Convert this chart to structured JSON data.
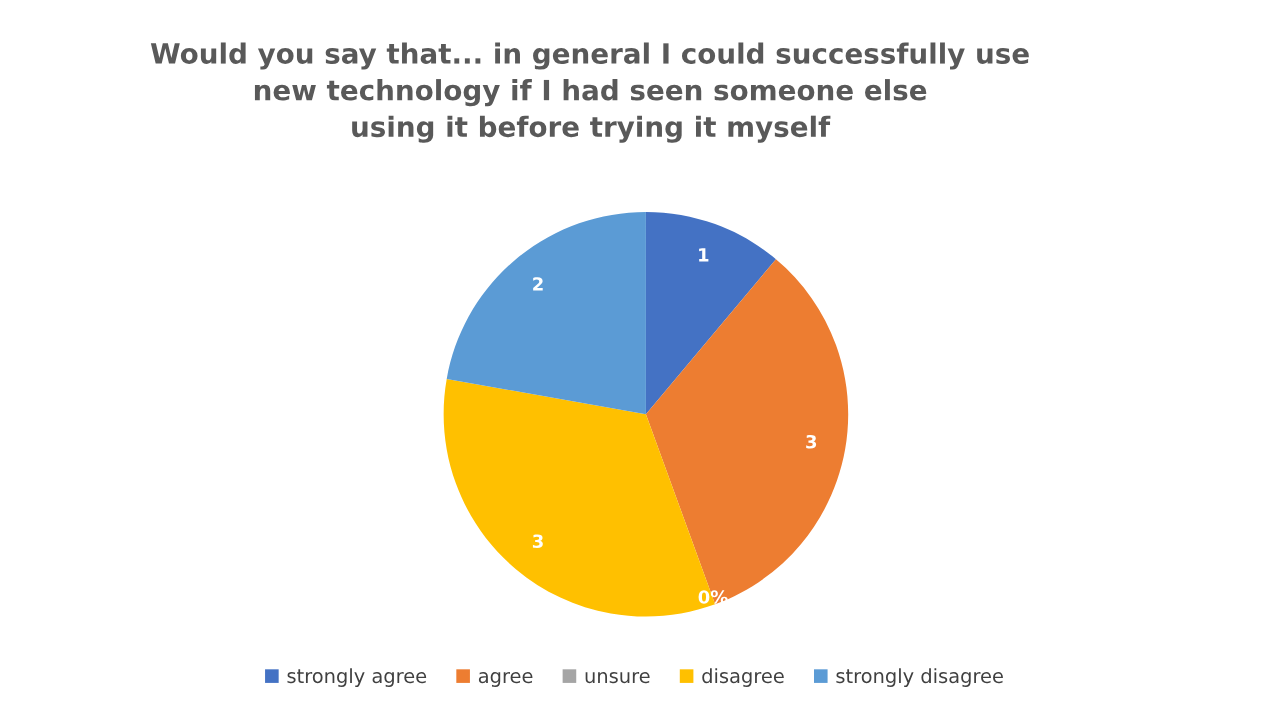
{
  "chart_data": {
    "type": "pie",
    "title": "Would you say that... in general I could successfully use\nnew technology if I had seen someone else\nusing it before trying it myself",
    "categories": [
      "strongly agree",
      "agree",
      "unsure",
      "disagree",
      "strongly disagree"
    ],
    "values": [
      1,
      3,
      0,
      3,
      2
    ],
    "colors": [
      "#4472c4",
      "#ed7d31",
      "#a5a5a5",
      "#ffc000",
      "#5b9bd5"
    ],
    "value_labels": [
      "1",
      "3",
      "0%",
      "3",
      "2"
    ],
    "legend": "bottom"
  }
}
